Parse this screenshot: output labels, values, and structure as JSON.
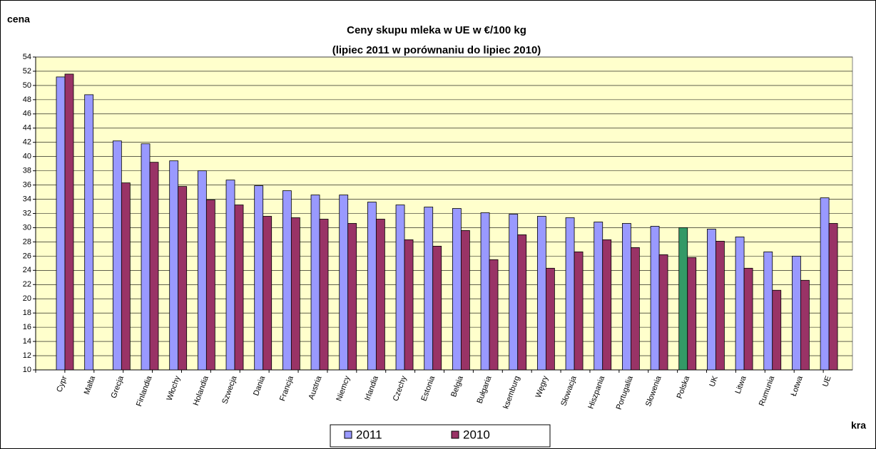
{
  "chart_data": {
    "type": "bar",
    "title": "Ceny skupu mleka w UE w €/100 kg",
    "subtitle": "(lipiec 2011 w porównaniu do lipiec 2010)",
    "y_label": "cena",
    "x_label": "kra",
    "categories": [
      "Cypr",
      "Malta",
      "Grecja",
      "Finlandia",
      "Włochy",
      "Holandia",
      "Szwecja",
      "Dania",
      "Francja",
      "Austria",
      "Niemcy",
      "Irlandia",
      "Czechy",
      "Estonia",
      "Belgia",
      "Bułgaria",
      "ksemburg",
      "Węgry",
      "Słowacja",
      "Hiszpania",
      "Portugalia",
      "Słowenia",
      "Polska",
      "UK",
      "Litwa",
      "Rumunia",
      "Łotwa",
      "UE"
    ],
    "series": [
      {
        "name": "2011",
        "color": "#9999ff",
        "point_colors": [
          "#9999ff",
          "#9999ff",
          "#9999ff",
          "#9999ff",
          "#9999ff",
          "#9999ff",
          "#9999ff",
          "#9999ff",
          "#9999ff",
          "#9999ff",
          "#9999ff",
          "#9999ff",
          "#9999ff",
          "#9999ff",
          "#9999ff",
          "#9999ff",
          "#9999ff",
          "#9999ff",
          "#9999ff",
          "#9999ff",
          "#9999ff",
          "#9999ff",
          "#339966",
          "#9999ff",
          "#9999ff",
          "#9999ff",
          "#9999ff",
          "#9999ff"
        ],
        "values": [
          51.2,
          48.7,
          42.2,
          41.8,
          39.4,
          38.0,
          36.7,
          35.9,
          35.2,
          34.6,
          34.6,
          33.6,
          33.2,
          32.9,
          32.7,
          32.1,
          31.9,
          31.6,
          31.4,
          30.8,
          30.6,
          30.2,
          30.0,
          29.8,
          28.7,
          26.6,
          26.0,
          34.2
        ]
      },
      {
        "name": "2010",
        "color": "#993366",
        "values": [
          51.6,
          null,
          36.3,
          39.2,
          35.8,
          33.9,
          33.2,
          31.6,
          31.4,
          31.2,
          30.6,
          31.2,
          28.3,
          27.4,
          29.6,
          25.5,
          29.0,
          24.3,
          26.6,
          28.3,
          27.2,
          26.2,
          25.8,
          28.1,
          24.3,
          21.2,
          22.6,
          30.6
        ]
      }
    ],
    "ylim": [
      10,
      54
    ],
    "yticks": [
      10,
      12,
      14,
      16,
      18,
      20,
      22,
      24,
      26,
      28,
      30,
      32,
      34,
      36,
      38,
      40,
      42,
      44,
      46,
      48,
      50,
      52,
      54
    ],
    "grid": true,
    "legend": "bottom",
    "plot_background": "#ffffcc"
  }
}
